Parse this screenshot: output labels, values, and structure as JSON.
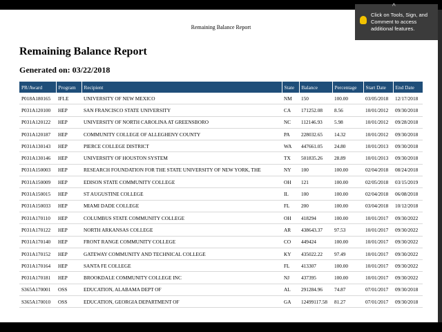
{
  "header": {
    "running_title": "Remaining Balance Report",
    "title": "Remaining Balance Report",
    "generated": "Generated on: 03/22/2018"
  },
  "tooltip": {
    "text": "Click on Tools, Sign, and Comment to access additional features."
  },
  "table": {
    "columns": [
      "PR/Award",
      "Program",
      "Recipient",
      "State",
      "Balance",
      "Percentage",
      "Start Date",
      "End Date"
    ],
    "rows": [
      [
        "P018A180165",
        "IFLE",
        "UNIVERSITY OF NEW MEXICO",
        "NM",
        "150",
        "100.00",
        "03/05/2018",
        "12/17/2018"
      ],
      [
        "P031A120100",
        "HEP",
        "SAN FRANCISCO STATE UNIVERSITY",
        "CA",
        "171252.08",
        "8.56",
        "10/01/2012",
        "09/30/2018"
      ],
      [
        "P031A120122",
        "HEP",
        "UNIVERSITY OF NORTH CAROLINA AT GREENSBORO",
        "NC",
        "112146.93",
        "5.98",
        "10/01/2012",
        "09/28/2018"
      ],
      [
        "P031A120187",
        "HEP",
        "COMMUNITY COLLEGE OF ALLEGHENY COUNTY",
        "PA",
        "228032.65",
        "14.32",
        "10/01/2012",
        "09/30/2018"
      ],
      [
        "P031A130143",
        "HEP",
        "PIERCE COLLEGE DISTRICT",
        "WA",
        "447661.05",
        "24.80",
        "10/01/2013",
        "09/30/2018"
      ],
      [
        "P031A130146",
        "HEP",
        "UNIVERSITY OF HOUSTON SYSTEM",
        "TX",
        "501835.26",
        "28.89",
        "10/01/2013",
        "09/30/2018"
      ],
      [
        "P031A150003",
        "HEP",
        "RESEARCH FOUNDATION FOR THE STATE UNIVERSITY OF NEW YORK, THE",
        "NY",
        "100",
        "100.00",
        "02/04/2018",
        "08/24/2018"
      ],
      [
        "P031A150009",
        "HEP",
        "EDISON STATE COMMUNITY COLLEGE",
        "OH",
        "121",
        "100.00",
        "02/05/2018",
        "03/15/2019"
      ],
      [
        "P031A150015",
        "HEP",
        "ST AUGUSTINE COLLEGE",
        "IL",
        "100",
        "100.00",
        "02/04/2018",
        "06/08/2018"
      ],
      [
        "P031A150033",
        "HEP",
        "MIAMI DADE COLLEGE",
        "FL",
        "200",
        "100.00",
        "03/04/2018",
        "10/12/2018"
      ],
      [
        "P031A170110",
        "HEP",
        "COLUMBUS STATE COMMUNITY COLLEGE",
        "OH",
        "418294",
        "100.00",
        "10/01/2017",
        "09/30/2022"
      ],
      [
        "P031A170122",
        "HEP",
        "NORTH ARKANSAS COLLEGE",
        "AR",
        "438643.37",
        "97.53",
        "10/01/2017",
        "09/30/2022"
      ],
      [
        "P031A170140",
        "HEP",
        "FRONT RANGE COMMUNITY COLLEGE",
        "CO",
        "449424",
        "100.00",
        "10/01/2017",
        "09/30/2022"
      ],
      [
        "P031A170152",
        "HEP",
        "GATEWAY COMMUNITY AND TECHNICAL COLLEGE",
        "KY",
        "435022.22",
        "97.49",
        "10/01/2017",
        "09/30/2022"
      ],
      [
        "P031A170164",
        "HEP",
        "SANTA FE COLLEGE",
        "FL",
        "413307",
        "100.00",
        "10/01/2017",
        "09/30/2022"
      ],
      [
        "P031A170181",
        "HEP",
        "BROOKDALE COMMUNITY COLLEGE INC",
        "NJ",
        "437395",
        "100.00",
        "10/01/2017",
        "09/30/2022"
      ],
      [
        "S365A170001",
        "OSS",
        "EDUCATION, ALABAMA DEPT OF",
        "AL",
        "291284.96",
        "74.87",
        "07/01/2017",
        "09/30/2018"
      ],
      [
        "S365A170010",
        "OSS",
        "EDUCATION, GEORGIA DEPARTMENT OF",
        "GA",
        "12499117.58",
        "81.27",
        "07/01/2017",
        "09/30/2018"
      ]
    ]
  }
}
